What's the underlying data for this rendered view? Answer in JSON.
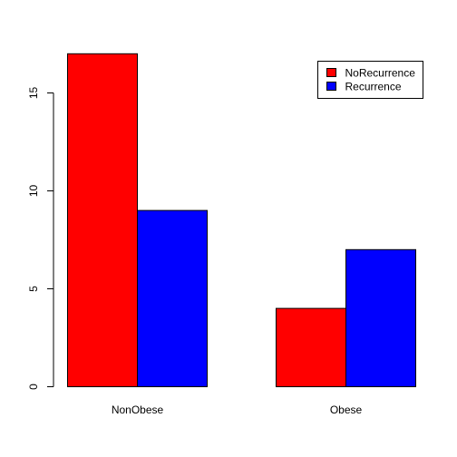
{
  "chart_data": {
    "type": "bar",
    "grouped": true,
    "categories": [
      "NonObese",
      "Obese"
    ],
    "series": [
      {
        "name": "NoRecurrence",
        "values": [
          17,
          4
        ],
        "color": "#ff0000"
      },
      {
        "name": "Recurrence",
        "values": [
          9,
          7
        ],
        "color": "#0000ff"
      }
    ],
    "title": "",
    "xlabel": "",
    "ylabel": "",
    "ylim": [
      0,
      17
    ],
    "yticks": [
      0,
      5,
      10,
      15
    ],
    "grid": false,
    "legend_position": "top-right"
  }
}
